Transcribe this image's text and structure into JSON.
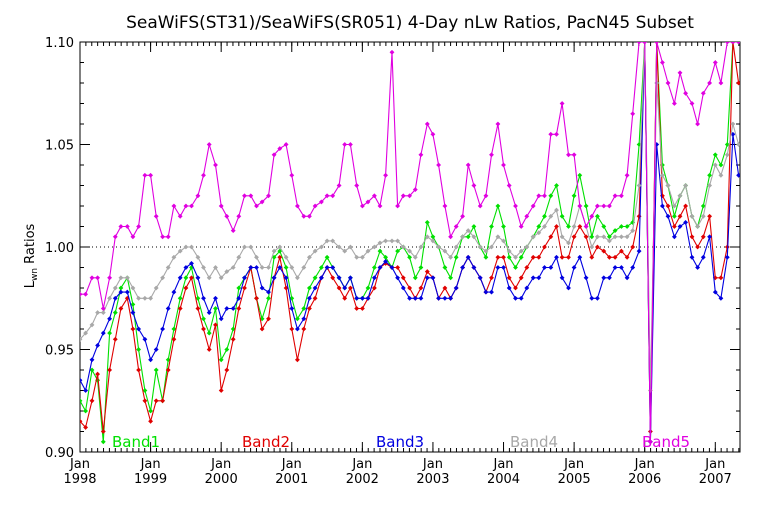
{
  "chart_data": {
    "type": "line",
    "title": "SeaWiFS(ST31)/SeaWiFS(SR051) 4-Day nLw Ratios, PacN45 Subset",
    "ylabel_main": "L",
    "ylabel_sub": "wn",
    "ylabel_rest": " Ratios",
    "xlabel": "",
    "ylim": [
      0.9,
      1.1
    ],
    "xlim": [
      1998.0,
      2007.35
    ],
    "reference_line": 1.0,
    "grid": false,
    "legend_placement": "bottom",
    "y_ticks": [
      {
        "value": 0.9,
        "label": "0.90"
      },
      {
        "value": 0.95,
        "label": "0.95"
      },
      {
        "value": 1.0,
        "label": "1.00"
      },
      {
        "value": 1.05,
        "label": "1.05"
      },
      {
        "value": 1.1,
        "label": "1.10"
      }
    ],
    "x_ticks": [
      {
        "value": 1998,
        "month": "Jan",
        "year": "1998"
      },
      {
        "value": 1999,
        "month": "Jan",
        "year": "1999"
      },
      {
        "value": 2000,
        "month": "Jan",
        "year": "2000"
      },
      {
        "value": 2001,
        "month": "Jan",
        "year": "2001"
      },
      {
        "value": 2002,
        "month": "Jan",
        "year": "2002"
      },
      {
        "value": 2003,
        "month": "Jan",
        "year": "2003"
      },
      {
        "value": 2004,
        "month": "Jan",
        "year": "2004"
      },
      {
        "value": 2005,
        "month": "Jan",
        "year": "2005"
      },
      {
        "value": 2006,
        "month": "Jan",
        "year": "2006"
      },
      {
        "value": 2007,
        "month": "Jan",
        "year": "2007"
      }
    ],
    "x": [
      1998.0,
      1998.08,
      1998.17,
      1998.25,
      1998.33,
      1998.42,
      1998.5,
      1998.58,
      1998.67,
      1998.75,
      1998.83,
      1998.92,
      1999.0,
      1999.08,
      1999.17,
      1999.25,
      1999.33,
      1999.42,
      1999.5,
      1999.58,
      1999.67,
      1999.75,
      1999.83,
      1999.92,
      2000.0,
      2000.08,
      2000.17,
      2000.25,
      2000.33,
      2000.42,
      2000.5,
      2000.58,
      2000.67,
      2000.75,
      2000.83,
      2000.92,
      2001.0,
      2001.08,
      2001.17,
      2001.25,
      2001.33,
      2001.42,
      2001.5,
      2001.58,
      2001.67,
      2001.75,
      2001.83,
      2001.92,
      2002.0,
      2002.08,
      2002.17,
      2002.25,
      2002.33,
      2002.42,
      2002.5,
      2002.58,
      2002.67,
      2002.75,
      2002.83,
      2002.92,
      2003.0,
      2003.08,
      2003.17,
      2003.25,
      2003.33,
      2003.42,
      2003.5,
      2003.58,
      2003.67,
      2003.75,
      2003.83,
      2003.92,
      2004.0,
      2004.08,
      2004.17,
      2004.25,
      2004.33,
      2004.42,
      2004.5,
      2004.58,
      2004.67,
      2004.75,
      2004.83,
      2004.92,
      2005.0,
      2005.08,
      2005.17,
      2005.25,
      2005.33,
      2005.42,
      2005.5,
      2005.58,
      2005.67,
      2005.75,
      2005.83,
      2005.92,
      2006.0,
      2006.08,
      2006.17,
      2006.25,
      2006.33,
      2006.42,
      2006.5,
      2006.58,
      2006.67,
      2006.75,
      2006.83,
      2006.92,
      2007.0,
      2007.08,
      2007.17,
      2007.25,
      2007.33
    ],
    "series": [
      {
        "name": "Band1",
        "color": "#00e000",
        "values": [
          0.925,
          0.92,
          0.94,
          0.935,
          0.905,
          0.958,
          0.968,
          0.98,
          0.985,
          0.972,
          0.95,
          0.93,
          0.92,
          0.94,
          0.925,
          0.945,
          0.96,
          0.975,
          0.985,
          0.99,
          0.975,
          0.965,
          0.958,
          0.97,
          0.945,
          0.95,
          0.96,
          0.98,
          0.985,
          0.99,
          0.975,
          0.965,
          0.975,
          0.995,
          0.998,
          0.99,
          0.975,
          0.965,
          0.97,
          0.98,
          0.985,
          0.99,
          0.995,
          0.99,
          0.985,
          0.98,
          0.985,
          0.975,
          0.975,
          0.98,
          0.99,
          0.998,
          0.995,
          0.99,
          0.998,
          1.0,
          0.995,
          0.985,
          0.99,
          1.012,
          1.005,
          1.0,
          0.99,
          0.985,
          0.995,
          1.005,
          1.005,
          1.01,
          1.0,
          0.995,
          1.01,
          1.02,
          1.01,
          0.995,
          0.99,
          0.995,
          1.0,
          1.005,
          1.01,
          1.015,
          1.025,
          1.03,
          1.015,
          1.01,
          1.025,
          1.035,
          1.02,
          1.005,
          1.015,
          1.01,
          1.005,
          1.008,
          1.01,
          1.01,
          1.012,
          1.05,
          1.1,
          0.905,
          1.1,
          1.04,
          1.03,
          1.015,
          1.025,
          1.03,
          1.015,
          1.01,
          1.02,
          1.035,
          1.045,
          1.04,
          1.05,
          1.1,
          1.1
        ]
      },
      {
        "name": "Band2",
        "color": "#e00000",
        "values": [
          0.915,
          0.912,
          0.925,
          0.938,
          0.91,
          0.94,
          0.955,
          0.97,
          0.975,
          0.96,
          0.94,
          0.925,
          0.915,
          0.925,
          0.925,
          0.94,
          0.955,
          0.97,
          0.98,
          0.985,
          0.97,
          0.96,
          0.95,
          0.962,
          0.93,
          0.94,
          0.955,
          0.97,
          0.98,
          0.99,
          0.975,
          0.96,
          0.965,
          0.985,
          0.995,
          0.98,
          0.96,
          0.945,
          0.96,
          0.97,
          0.975,
          0.985,
          0.99,
          0.985,
          0.98,
          0.975,
          0.98,
          0.97,
          0.97,
          0.975,
          0.98,
          0.99,
          0.992,
          0.99,
          0.99,
          0.985,
          0.98,
          0.975,
          0.98,
          0.988,
          0.985,
          0.975,
          0.98,
          0.975,
          0.98,
          0.99,
          0.995,
          0.99,
          0.985,
          0.978,
          0.985,
          0.995,
          0.995,
          0.985,
          0.98,
          0.985,
          0.99,
          0.995,
          0.995,
          1.0,
          1.005,
          1.01,
          0.995,
          0.995,
          1.005,
          1.01,
          1.005,
          0.995,
          1.0,
          0.998,
          0.995,
          0.995,
          0.998,
          0.995,
          1.0,
          1.015,
          1.1,
          0.91,
          1.1,
          1.025,
          1.02,
          1.01,
          1.015,
          1.02,
          1.005,
          1.0,
          1.005,
          1.015,
          0.985,
          0.985,
          1.0,
          1.1,
          1.08
        ]
      },
      {
        "name": "Band3",
        "color": "#0000e0",
        "values": [
          0.935,
          0.93,
          0.945,
          0.952,
          0.958,
          0.965,
          0.975,
          0.978,
          0.978,
          0.968,
          0.96,
          0.955,
          0.945,
          0.95,
          0.96,
          0.97,
          0.978,
          0.985,
          0.99,
          0.992,
          0.985,
          0.975,
          0.968,
          0.975,
          0.965,
          0.97,
          0.97,
          0.975,
          0.985,
          0.99,
          0.99,
          0.98,
          0.978,
          0.985,
          0.99,
          0.985,
          0.97,
          0.96,
          0.965,
          0.975,
          0.98,
          0.985,
          0.99,
          0.99,
          0.985,
          0.98,
          0.985,
          0.975,
          0.975,
          0.975,
          0.985,
          0.99,
          0.993,
          0.99,
          0.985,
          0.98,
          0.975,
          0.975,
          0.975,
          0.985,
          0.985,
          0.975,
          0.975,
          0.975,
          0.98,
          0.99,
          0.995,
          0.99,
          0.985,
          0.978,
          0.978,
          0.99,
          0.99,
          0.98,
          0.975,
          0.975,
          0.98,
          0.985,
          0.985,
          0.99,
          0.99,
          0.995,
          0.985,
          0.98,
          0.99,
          0.995,
          0.985,
          0.975,
          0.975,
          0.985,
          0.985,
          0.99,
          0.99,
          0.985,
          0.99,
          0.998,
          1.1,
          0.905,
          1.05,
          1.02,
          1.015,
          1.005,
          1.01,
          1.012,
          0.995,
          0.99,
          0.995,
          1.005,
          0.978,
          0.975,
          0.995,
          1.055,
          1.035
        ]
      },
      {
        "name": "Band4",
        "color": "#a8a8a8",
        "values": [
          0.955,
          0.958,
          0.962,
          0.968,
          0.968,
          0.975,
          0.98,
          0.985,
          0.985,
          0.98,
          0.975,
          0.975,
          0.975,
          0.98,
          0.985,
          0.99,
          0.995,
          0.998,
          1.0,
          1.0,
          0.995,
          0.99,
          0.985,
          0.99,
          0.985,
          0.988,
          0.99,
          0.995,
          1.0,
          1.0,
          0.995,
          0.99,
          0.99,
          0.998,
          1.0,
          0.995,
          0.99,
          0.985,
          0.99,
          0.995,
          0.998,
          1.0,
          1.003,
          1.003,
          1.0,
          0.998,
          1.0,
          0.995,
          0.995,
          0.998,
          1.0,
          1.002,
          1.003,
          1.003,
          1.003,
          1.0,
          0.998,
          0.995,
          1.0,
          1.005,
          1.003,
          1.0,
          0.998,
          0.995,
          1.0,
          1.005,
          1.008,
          1.005,
          1.0,
          0.998,
          1.0,
          1.005,
          1.003,
          0.998,
          0.995,
          0.998,
          1.0,
          1.005,
          1.007,
          1.01,
          1.015,
          1.018,
          1.005,
          1.002,
          1.01,
          1.02,
          1.01,
          1.0,
          1.005,
          1.005,
          1.003,
          1.005,
          1.005,
          1.005,
          1.008,
          1.03,
          1.1,
          0.93,
          1.08,
          1.035,
          1.03,
          1.02,
          1.025,
          1.03,
          1.015,
          1.01,
          1.015,
          1.03,
          1.04,
          1.035,
          1.045,
          1.06,
          1.05
        ]
      },
      {
        "name": "Band5",
        "color": "#e000e0",
        "values": [
          0.977,
          0.977,
          0.985,
          0.985,
          0.97,
          0.985,
          1.005,
          1.01,
          1.01,
          1.005,
          1.01,
          1.035,
          1.035,
          1.015,
          1.005,
          1.005,
          1.02,
          1.015,
          1.02,
          1.02,
          1.025,
          1.035,
          1.05,
          1.04,
          1.02,
          1.015,
          1.008,
          1.015,
          1.025,
          1.025,
          1.02,
          1.022,
          1.025,
          1.045,
          1.048,
          1.05,
          1.035,
          1.02,
          1.015,
          1.015,
          1.02,
          1.022,
          1.025,
          1.025,
          1.03,
          1.05,
          1.05,
          1.03,
          1.02,
          1.022,
          1.025,
          1.02,
          1.035,
          1.095,
          1.02,
          1.025,
          1.025,
          1.028,
          1.045,
          1.06,
          1.055,
          1.04,
          1.02,
          1.005,
          1.01,
          1.015,
          1.04,
          1.03,
          1.02,
          1.025,
          1.045,
          1.06,
          1.04,
          1.03,
          1.02,
          1.01,
          1.015,
          1.02,
          1.025,
          1.025,
          1.055,
          1.055,
          1.07,
          1.045,
          1.045,
          1.02,
          1.01,
          1.015,
          1.02,
          1.02,
          1.02,
          1.025,
          1.025,
          1.035,
          1.065,
          1.1,
          1.1,
          0.905,
          1.1,
          1.09,
          1.08,
          1.07,
          1.085,
          1.075,
          1.07,
          1.06,
          1.075,
          1.08,
          1.09,
          1.08,
          1.1,
          1.1,
          1.1
        ]
      }
    ]
  }
}
